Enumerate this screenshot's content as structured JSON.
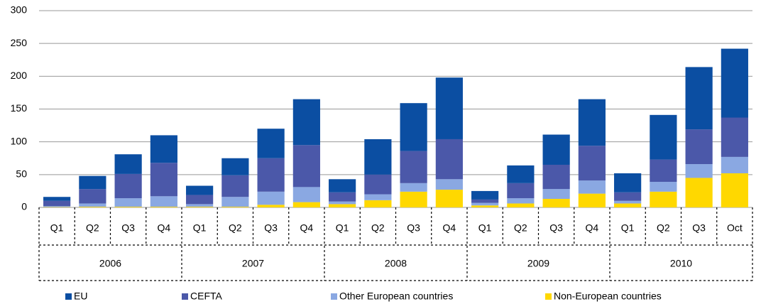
{
  "chart_data": {
    "type": "stacked_bar",
    "categories": [
      "Q1",
      "Q2",
      "Q3",
      "Q4",
      "Q1",
      "Q2",
      "Q3",
      "Q4",
      "Q1",
      "Q2",
      "Q3",
      "Q4",
      "Q1",
      "Q2",
      "Q3",
      "Q4",
      "Q1",
      "Q2",
      "Q3",
      "Oct"
    ],
    "groups": [
      "2006",
      "2007",
      "2008",
      "2009",
      "2010"
    ],
    "series": [
      {
        "name": "EU",
        "color": "#0b4ea2",
        "values": [
          6,
          20,
          30,
          42,
          14,
          26,
          45,
          70,
          20,
          54,
          73,
          94,
          13,
          27,
          46,
          71,
          29,
          68,
          95,
          105
        ]
      },
      {
        "name": "CEFTA",
        "color": "#4b58a9",
        "values": [
          8,
          22,
          37,
          51,
          14,
          33,
          51,
          64,
          14,
          30,
          49,
          61,
          5,
          23,
          37,
          53,
          13,
          34,
          53,
          60
        ]
      },
      {
        "name": "Other European countries",
        "color": "#8aa8e2",
        "values": [
          1.5,
          5,
          13,
          16,
          4,
          15,
          20,
          23,
          4,
          9,
          13,
          16,
          4,
          8,
          15,
          20,
          4,
          15,
          21,
          25
        ]
      },
      {
        "name": "Non-European countries",
        "color": "#ffd800",
        "values": [
          0.5,
          1,
          1,
          1,
          1,
          1,
          4,
          8,
          5,
          11,
          24,
          27,
          3,
          6,
          13,
          21,
          6,
          24,
          45,
          52
        ]
      }
    ],
    "ylim": [
      0,
      300
    ],
    "yticks": [
      0,
      50,
      100,
      150,
      200,
      250,
      300
    ],
    "grid": true
  }
}
